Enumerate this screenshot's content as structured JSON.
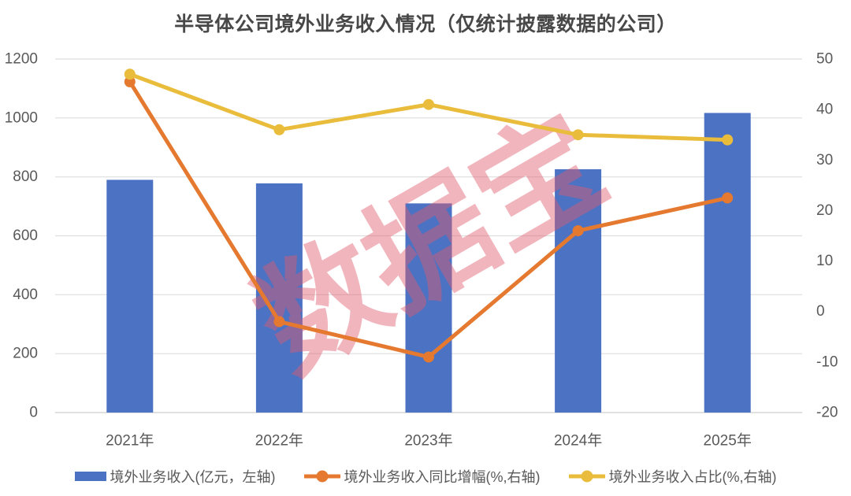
{
  "title": "半导体公司境外业务收入情况（仅统计披露数据的公司）",
  "watermark": "数据宝",
  "colors": {
    "bar": "#4C72C4",
    "growth_line": "#E4792F",
    "share_line": "#E9BD3B",
    "grid": "#DEDEDE",
    "zero_axis": "#D6D6D6",
    "axis_text": "#595959",
    "title_text": "#484848",
    "watermark": "rgba(225,92,108,0.45)"
  },
  "chart_data": {
    "type": "combo-bar-line",
    "title": "半导体公司境外业务收入情况（仅统计披露数据的公司）",
    "categories": [
      "2021年",
      "2022年",
      "2023年",
      "2024年",
      "2025年"
    ],
    "series": [
      {
        "name": "境外业务收入(亿元，左轴)",
        "type": "bar",
        "axis": "left",
        "values": [
          790,
          778,
          710,
          826,
          1017
        ]
      },
      {
        "name": "境外业务收入同比增幅(%,右轴)",
        "type": "line",
        "axis": "right",
        "values": [
          45.5,
          -2,
          -9,
          16,
          22.5
        ]
      },
      {
        "name": "境外业务收入占比(%,右轴)",
        "type": "line",
        "axis": "right",
        "values": [
          47,
          36,
          41,
          35,
          34
        ]
      }
    ],
    "left_axis": {
      "min": 0,
      "max": 1200,
      "step": 200,
      "ticks": [
        0,
        200,
        400,
        600,
        800,
        1000,
        1200
      ]
    },
    "right_axis": {
      "min": -20,
      "max": 50,
      "step": 10,
      "ticks": [
        -20,
        -10,
        0,
        10,
        20,
        30,
        40,
        50
      ]
    },
    "grid": true,
    "legend_position": "bottom"
  }
}
